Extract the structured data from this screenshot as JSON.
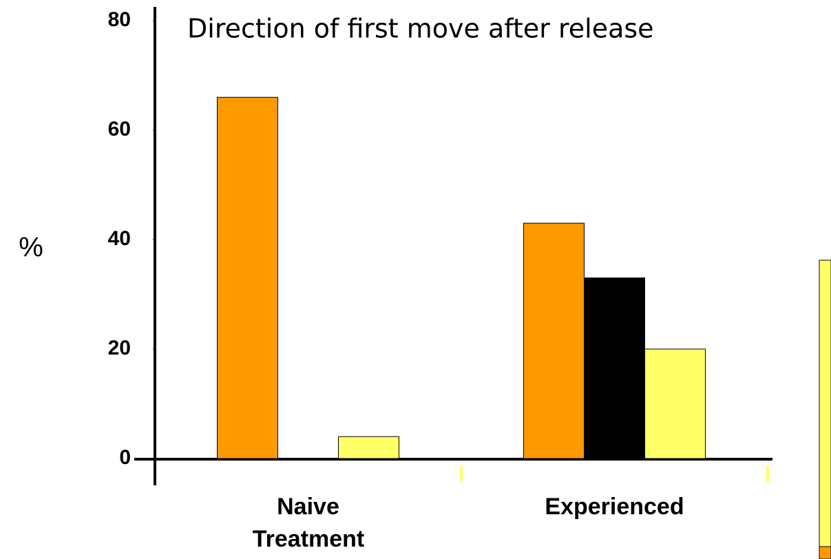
{
  "chart_data": {
    "type": "bar",
    "title": "Direction of first move after release",
    "y_label": "%",
    "x_label": "Treatment",
    "categories": [
      "Naive",
      "Experienced"
    ],
    "series": [
      {
        "color": "#ff9900",
        "values": [
          66,
          43
        ]
      },
      {
        "color": "#000000",
        "values": [
          0,
          33
        ]
      },
      {
        "color": "#ffff66",
        "values": [
          4,
          20
        ]
      }
    ],
    "ylim": [
      0,
      80
    ],
    "yticks": [
      0,
      20,
      40,
      60,
      80
    ],
    "grid": false
  }
}
